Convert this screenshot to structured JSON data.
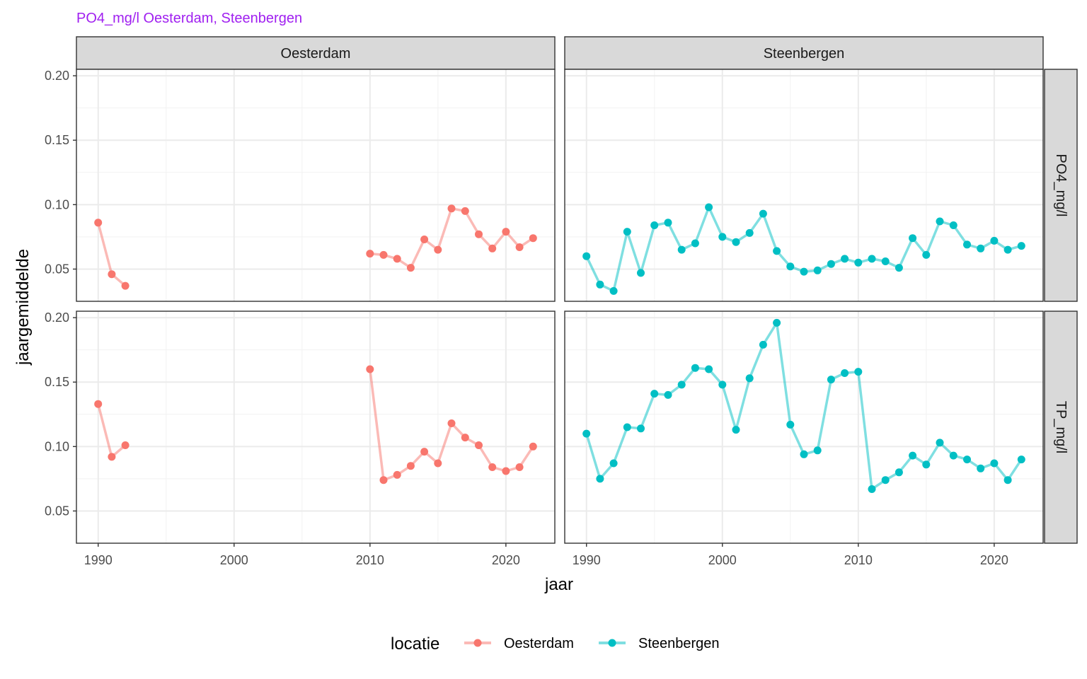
{
  "chart_data": {
    "type": "line",
    "subtitle": "PO4_mg/l Oesterdam, Steenbergen",
    "xlabel": "jaar",
    "ylabel": "jaargemiddelde",
    "xlim": [
      1988.4,
      2023.6
    ],
    "ylim": [
      0.025,
      0.205
    ],
    "x_ticks": [
      1990,
      2000,
      2010,
      2020
    ],
    "y_ticks": [
      0.05,
      0.1,
      0.15,
      0.2
    ],
    "y_tick_labels": [
      "0.05",
      "0.10",
      "0.15",
      "0.20"
    ],
    "grid": true,
    "columns": [
      "Oesterdam",
      "Steenbergen"
    ],
    "rows": [
      "PO4_mg/l",
      "TP_mg/l"
    ],
    "legend": {
      "title": "locatie",
      "position": "bottom",
      "items": [
        {
          "name": "Oesterdam",
          "color": "#f8766d"
        },
        {
          "name": "Steenbergen",
          "color": "#00bfc4"
        }
      ]
    },
    "series": [
      {
        "location": "Oesterdam",
        "parameter": "PO4_mg/l",
        "color": "#f8766d",
        "segments": [
          [
            [
              1990,
              0.086
            ],
            [
              1991,
              0.046
            ],
            [
              1992,
              0.037
            ]
          ],
          [
            [
              2010,
              0.062
            ],
            [
              2011,
              0.061
            ],
            [
              2012,
              0.058
            ],
            [
              2013,
              0.051
            ],
            [
              2014,
              0.073
            ],
            [
              2015,
              0.065
            ],
            [
              2016,
              0.097
            ],
            [
              2017,
              0.095
            ],
            [
              2018,
              0.077
            ],
            [
              2019,
              0.066
            ],
            [
              2020,
              0.079
            ],
            [
              2021,
              0.067
            ],
            [
              2022,
              0.074
            ]
          ]
        ]
      },
      {
        "location": "Steenbergen",
        "parameter": "PO4_mg/l",
        "color": "#00bfc4",
        "segments": [
          [
            [
              1990,
              0.06
            ],
            [
              1991,
              0.038
            ],
            [
              1992,
              0.033
            ],
            [
              1993,
              0.079
            ],
            [
              1994,
              0.047
            ],
            [
              1995,
              0.084
            ],
            [
              1996,
              0.086
            ],
            [
              1997,
              0.065
            ],
            [
              1998,
              0.07
            ],
            [
              1999,
              0.098
            ],
            [
              2000,
              0.075
            ],
            [
              2001,
              0.071
            ],
            [
              2002,
              0.078
            ],
            [
              2003,
              0.093
            ],
            [
              2004,
              0.064
            ],
            [
              2005,
              0.052
            ],
            [
              2006,
              0.048
            ],
            [
              2007,
              0.049
            ],
            [
              2008,
              0.054
            ],
            [
              2009,
              0.058
            ],
            [
              2010,
              0.055
            ],
            [
              2011,
              0.058
            ],
            [
              2012,
              0.056
            ],
            [
              2013,
              0.051
            ],
            [
              2014,
              0.074
            ],
            [
              2015,
              0.061
            ],
            [
              2016,
              0.087
            ],
            [
              2017,
              0.084
            ],
            [
              2018,
              0.069
            ],
            [
              2019,
              0.066
            ],
            [
              2020,
              0.072
            ],
            [
              2021,
              0.065
            ],
            [
              2022,
              0.068
            ]
          ]
        ]
      },
      {
        "location": "Oesterdam",
        "parameter": "TP_mg/l",
        "color": "#f8766d",
        "segments": [
          [
            [
              1990,
              0.133
            ],
            [
              1991,
              0.092
            ],
            [
              1992,
              0.101
            ]
          ],
          [
            [
              2010,
              0.16
            ],
            [
              2011,
              0.074
            ],
            [
              2012,
              0.078
            ],
            [
              2013,
              0.085
            ],
            [
              2014,
              0.096
            ],
            [
              2015,
              0.087
            ],
            [
              2016,
              0.118
            ],
            [
              2017,
              0.107
            ],
            [
              2018,
              0.101
            ],
            [
              2019,
              0.084
            ],
            [
              2020,
              0.081
            ],
            [
              2021,
              0.084
            ],
            [
              2022,
              0.1
            ]
          ]
        ]
      },
      {
        "location": "Steenbergen",
        "parameter": "TP_mg/l",
        "color": "#00bfc4",
        "segments": [
          [
            [
              1990,
              0.11
            ],
            [
              1991,
              0.075
            ],
            [
              1992,
              0.087
            ],
            [
              1993,
              0.115
            ],
            [
              1994,
              0.114
            ],
            [
              1995,
              0.141
            ],
            [
              1996,
              0.14
            ],
            [
              1997,
              0.148
            ],
            [
              1998,
              0.161
            ],
            [
              1999,
              0.16
            ],
            [
              2000,
              0.148
            ],
            [
              2001,
              0.113
            ],
            [
              2002,
              0.153
            ],
            [
              2003,
              0.179
            ],
            [
              2004,
              0.196
            ],
            [
              2005,
              0.117
            ],
            [
              2006,
              0.094
            ],
            [
              2007,
              0.097
            ],
            [
              2008,
              0.152
            ],
            [
              2009,
              0.157
            ],
            [
              2010,
              0.158
            ],
            [
              2011,
              0.067
            ],
            [
              2012,
              0.074
            ],
            [
              2013,
              0.08
            ],
            [
              2014,
              0.093
            ],
            [
              2015,
              0.086
            ],
            [
              2016,
              0.103
            ],
            [
              2017,
              0.093
            ],
            [
              2018,
              0.09
            ],
            [
              2019,
              0.083
            ],
            [
              2020,
              0.087
            ],
            [
              2021,
              0.074
            ],
            [
              2022,
              0.09
            ]
          ]
        ]
      }
    ]
  }
}
